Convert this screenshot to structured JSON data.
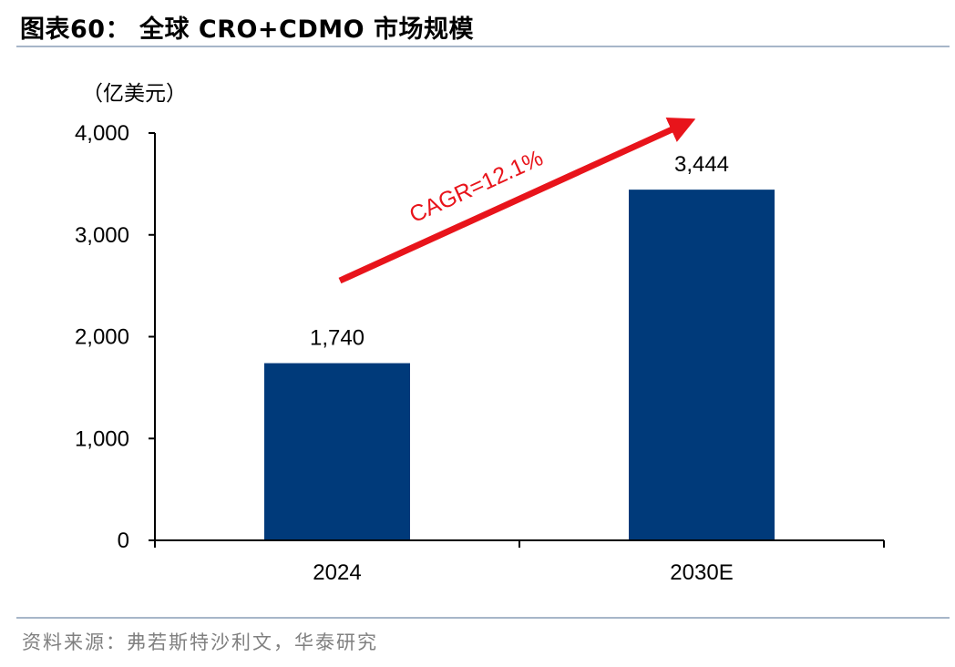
{
  "figure": {
    "title": "图表60：  全球 CRO+CDMO 市场规模",
    "source": "资料来源：弗若斯特沙利文，华泰研究"
  },
  "colors": {
    "bar": "#003A7A",
    "arrow": "#E8141B",
    "rule": "#A7B6C9",
    "source_text": "#808080"
  },
  "chart_data": {
    "type": "bar",
    "unit_label": "（亿美元）",
    "categories": [
      "2024",
      "2030E"
    ],
    "values": [
      1740,
      3444
    ],
    "value_labels": [
      "1,740",
      "3,444"
    ],
    "ylim": [
      0,
      4000
    ],
    "yticks": [
      0,
      1000,
      2000,
      3000,
      4000
    ],
    "ytick_labels": [
      "0",
      "1,000",
      "2,000",
      "3,000",
      "4,000"
    ],
    "grid": false,
    "legend": "none",
    "annotation": {
      "text": "CAGR=12.1%",
      "style": "red arrow rising from first bar toward second bar"
    }
  }
}
